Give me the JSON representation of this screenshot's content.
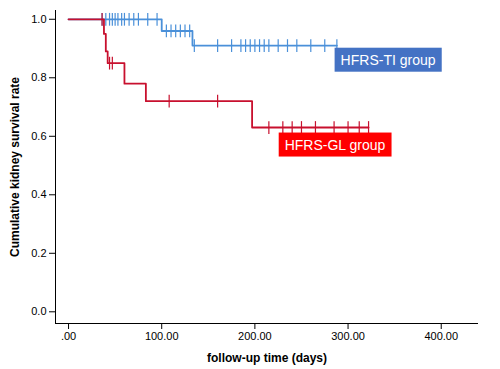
{
  "chart_data": {
    "type": "line",
    "line_style": "step",
    "xlabel": "follow-up time (days)",
    "ylabel": "Cumulative kidney survival rate",
    "xlim": [
      -14,
      440
    ],
    "ylim": [
      -0.04,
      1.03
    ],
    "xticks": [
      {
        "value": 0,
        "label": ".00"
      },
      {
        "value": 100,
        "label": "100.00"
      },
      {
        "value": 200,
        "label": "200.00"
      },
      {
        "value": 300,
        "label": "300.00"
      },
      {
        "value": 400,
        "label": "400.00"
      }
    ],
    "yticks": [
      {
        "value": 0,
        "label": "0.0"
      },
      {
        "value": 0.2,
        "label": "0.2"
      },
      {
        "value": 0.4,
        "label": "0.4"
      },
      {
        "value": 0.6,
        "label": "0.6"
      },
      {
        "value": 0.8,
        "label": "0.8"
      },
      {
        "value": 1,
        "label": "1.0"
      }
    ],
    "grid": false,
    "series": [
      {
        "name": "HFRS-TI group",
        "color": "#4a90d9",
        "marker": "tick",
        "x": [
          0,
          100,
          133,
          288
        ],
        "values": [
          1.0,
          0.96,
          0.91,
          0.91
        ],
        "censored": {
          "x": [
            36,
            40,
            44,
            47,
            50,
            53,
            57,
            60,
            65,
            70,
            75,
            85,
            95,
            105,
            110,
            115,
            120,
            125,
            130,
            135,
            160,
            175,
            185,
            190,
            195,
            200,
            205,
            210,
            215,
            225,
            235,
            245,
            260,
            275,
            288
          ],
          "values": [
            1.0,
            1.0,
            1.0,
            1.0,
            1.0,
            1.0,
            1.0,
            1.0,
            1.0,
            1.0,
            1.0,
            1.0,
            1.0,
            0.96,
            0.96,
            0.96,
            0.96,
            0.96,
            0.96,
            0.91,
            0.91,
            0.91,
            0.91,
            0.91,
            0.91,
            0.91,
            0.91,
            0.91,
            0.91,
            0.91,
            0.91,
            0.91,
            0.91,
            0.91,
            0.91
          ]
        }
      },
      {
        "name": "HFRS-GL group",
        "color": "#c8102e",
        "marker": "tick",
        "x": [
          0,
          38,
          40,
          42,
          60,
          83,
          197,
          322
        ],
        "values": [
          1.0,
          0.95,
          0.89,
          0.85,
          0.78,
          0.72,
          0.63,
          0.63
        ],
        "censored": {
          "x": [
            36,
            44,
            47,
            108,
            160,
            215,
            230,
            240,
            250,
            265,
            285,
            300,
            312,
            322
          ],
          "values": [
            1.0,
            0.85,
            0.85,
            0.72,
            0.72,
            0.63,
            0.63,
            0.63,
            0.63,
            0.63,
            0.63,
            0.63,
            0.63,
            0.63
          ]
        }
      }
    ],
    "annotations": [
      {
        "text": "HFRS-TI group",
        "x": 292,
        "y": 0.86,
        "color": "#4472c4"
      },
      {
        "text": "HFRS-GL group",
        "x": 232,
        "y": 0.57,
        "color": "#ff0000"
      }
    ]
  }
}
